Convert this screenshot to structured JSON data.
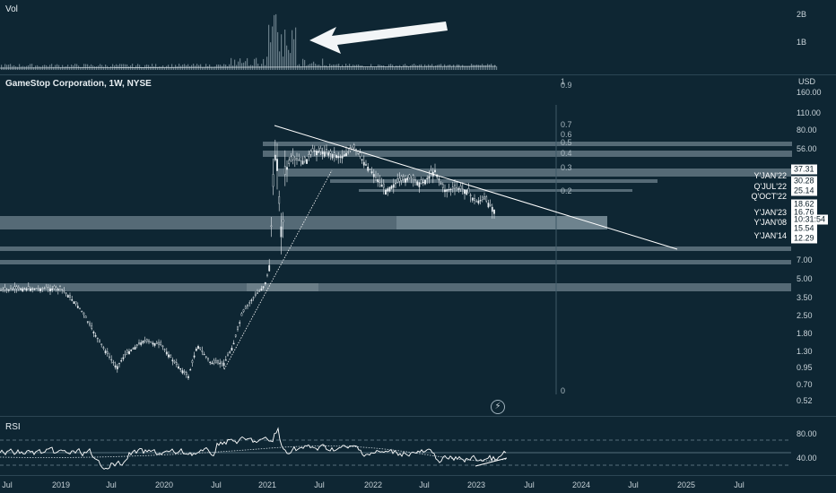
{
  "vol_pane": {
    "title": "Vol",
    "y_labels": [
      {
        "text": "2B",
        "y": 2
      },
      {
        "text": "1B",
        "y": 1
      }
    ]
  },
  "main_pane": {
    "title": "GameStop Corporation, 1W, NYSE",
    "currency": "USD",
    "y_labels": [
      "160.00",
      "110.00",
      "80.00",
      "56.00",
      "7.00",
      "5.00",
      "3.50",
      "2.50",
      "1.80",
      "1.30",
      "0.95",
      "0.70",
      "0.52"
    ],
    "fib_labels": [
      "1",
      "0.9",
      "0.7",
      "0.6",
      "0.5",
      "0.4",
      "0.3",
      "0.2",
      "0"
    ],
    "price_badges": [
      {
        "text": "37.31",
        "style": "light"
      },
      {
        "text": "30.28",
        "style": "light"
      },
      {
        "text": "25.14",
        "style": "light"
      },
      {
        "text": "18.62",
        "style": "light"
      },
      {
        "text": "16.76",
        "style": "light"
      },
      {
        "text": "10:31:54",
        "style": "light"
      },
      {
        "text": "15.54",
        "style": "light"
      },
      {
        "text": "12.29",
        "style": "light"
      }
    ],
    "level_labels": [
      {
        "text": "Y'JAN'22"
      },
      {
        "text": "Q'JUL'22"
      },
      {
        "text": "Q'OCT'22"
      },
      {
        "text": "Y'JAN'23"
      },
      {
        "text": "Y'JAN'08"
      },
      {
        "text": "Y'JAN'14"
      }
    ],
    "colors": {
      "background": "#0e2633",
      "candles": "#e8eef2",
      "zones": "#8fa3ad",
      "line": "#ffffff"
    }
  },
  "rsi_pane": {
    "title": "RSI",
    "y_labels": [
      "80.00",
      "40.00"
    ]
  },
  "time_axis": {
    "labels": [
      "Jul",
      "2019",
      "Jul",
      "2020",
      "Jul",
      "2021",
      "Jul",
      "2022",
      "Jul",
      "2023",
      "Jul",
      "2024",
      "Jul",
      "2025",
      "Jul"
    ]
  },
  "icons": {
    "snapshot": "lightning-icon",
    "annotation": "arrow-annotation"
  }
}
